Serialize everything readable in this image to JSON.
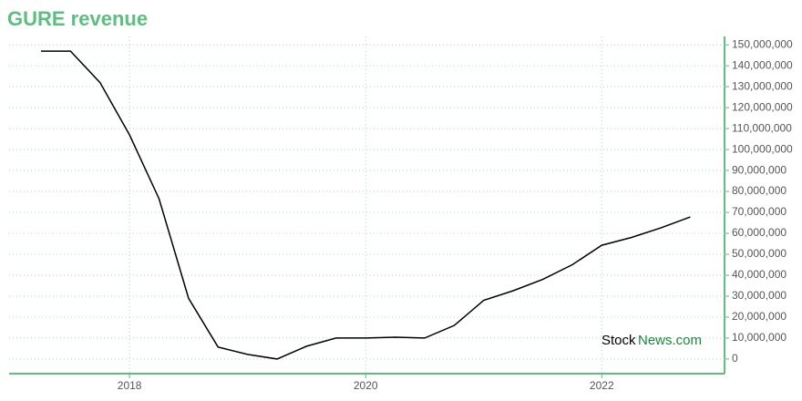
{
  "chart_data": {
    "type": "line",
    "title": "GURE revenue",
    "watermark": [
      "Stock",
      "News.com"
    ],
    "x": [
      2017.25,
      2017.5,
      2017.75,
      2018,
      2018.25,
      2018.5,
      2018.75,
      2019,
      2019.25,
      2019.5,
      2019.75,
      2020,
      2020.25,
      2020.5,
      2020.75,
      2021,
      2021.25,
      2021.5,
      2021.75,
      2022,
      2022.25,
      2022.5,
      2022.75
    ],
    "series": [
      {
        "name": "revenue",
        "color": "#000000",
        "values": [
          147000000,
          147000000,
          132000000,
          107000000,
          76500000,
          29000000,
          5700000,
          2200000,
          0,
          6100000,
          10000000,
          10000000,
          10400000,
          10000000,
          16000000,
          28000000,
          32600000,
          38000000,
          45000000,
          54300000,
          58000000,
          62600000,
          67800000
        ]
      }
    ],
    "xlim": [
      2016.98,
      2023.04
    ],
    "xticks": [
      2018,
      2020,
      2022
    ],
    "ylim": [
      -7000000,
      154000000
    ],
    "yticks": [
      0,
      {
        "value": 10000000,
        "label": "10,000,000"
      },
      {
        "value": 20000000,
        "label": "20,000,000"
      },
      {
        "value": 30000000,
        "label": "30,000,000"
      },
      {
        "value": 40000000,
        "label": "40,000,000"
      },
      {
        "value": 50000000,
        "label": "50,000,000"
      },
      {
        "value": 60000000,
        "label": "60,000,000"
      },
      {
        "value": 70000000,
        "label": "70,000,000"
      },
      {
        "value": 80000000,
        "label": "80,000,000"
      },
      {
        "value": 90000000,
        "label": "90,000,000"
      },
      {
        "value": 100000000,
        "label": "100,000,000"
      },
      {
        "value": 110000000,
        "label": "110,000,000"
      },
      {
        "value": 120000000,
        "label": "120,000,000"
      },
      {
        "value": 130000000,
        "label": "130,000,000"
      },
      {
        "value": 140000000,
        "label": "140,000,000"
      },
      {
        "value": 150000000,
        "label": "150,000,000"
      }
    ],
    "grid": true,
    "axis_color": "#5cbf7f"
  }
}
